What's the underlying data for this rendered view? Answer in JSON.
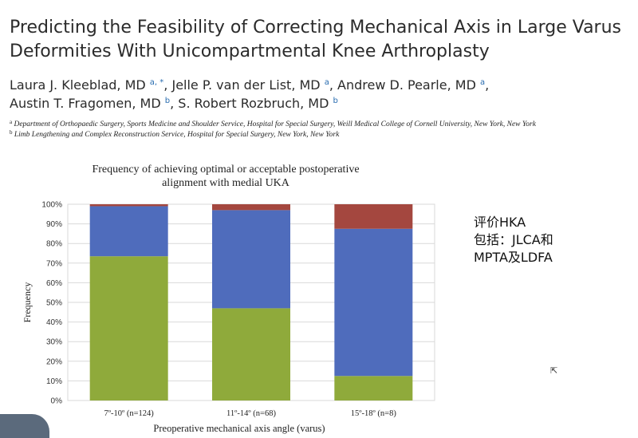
{
  "slide": {
    "title_line1": "Predicting the Feasibility of Correcting Mechanical Axis in Large Varus",
    "title_line2": "Deformities With Unicompartmental Knee Arthroplasty",
    "authors": [
      {
        "name": "Laura J. Kleeblad, MD",
        "sup": "a, *"
      },
      {
        "name": "Jelle P. van der List, MD",
        "sup": "a"
      },
      {
        "name": "Andrew D. Pearle, MD",
        "sup": "a"
      },
      {
        "name": "Austin T. Fragomen, MD",
        "sup": "b"
      },
      {
        "name": "S. Robert Rozbruch, MD",
        "sup": "b"
      }
    ],
    "affiliations": [
      {
        "sup": "a",
        "text": "Department of Orthopaedic Surgery, Sports Medicine and Shoulder Service, Hospital for Special Surgery, Weill Medical College of Cornell University, New York, New York"
      },
      {
        "sup": "b",
        "text": "Limb Lengthening and Complex Reconstruction Service, Hospital for Special Surgery, New York, New York"
      }
    ],
    "note_lines": [
      "评价HKA",
      "包括：JLCA和",
      "MPTA及LDFA"
    ]
  },
  "chart_data": {
    "type": "bar",
    "stacked": true,
    "title": "Frequency of achieving optimal or acceptable postoperative alignment with medial UKA",
    "title_lines": [
      "Frequency of achieving optimal or acceptable postoperative",
      "alignment with medial UKA"
    ],
    "xlabel": "Preoperative mechanical axis angle (varus)",
    "ylabel": "Frequency",
    "categories": [
      "7º-10º (n=124)",
      "11º-14º (n=68)",
      "15º-18º (n=8)"
    ],
    "ylim": [
      0,
      100
    ],
    "yticks": [
      "0%",
      "10%",
      "20%",
      "30%",
      "40%",
      "50%",
      "60%",
      "70%",
      "80%",
      "90%",
      "100%"
    ],
    "grid": true,
    "legend": "none",
    "series": [
      {
        "color": "#8faa3b",
        "values": [
          73.5,
          47,
          12.5
        ]
      },
      {
        "color": "#4f6cbc",
        "values": [
          25.5,
          50,
          75
        ]
      },
      {
        "color": "#a4473f",
        "values": [
          1,
          3,
          12.5
        ]
      }
    ]
  }
}
